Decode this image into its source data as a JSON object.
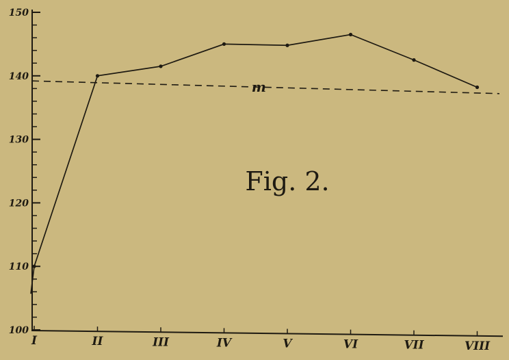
{
  "chart_data": {
    "type": "line",
    "title": "",
    "figure_label": "Fig. 2.",
    "xlabel": "",
    "ylabel": "",
    "x_tick_labels": [
      "I",
      "II",
      "III",
      "IV",
      "V",
      "VI",
      "VII",
      "VIII"
    ],
    "y_tick_labels": [
      "100",
      "110",
      "120",
      "130",
      "140",
      "150"
    ],
    "ylim": [
      100,
      150
    ],
    "series": [
      {
        "values": [
          110,
          140,
          141.5,
          145,
          144.8,
          146.5,
          142.5,
          138.2
        ],
        "style": "solid",
        "markers": true,
        "color": "#1e1a12"
      }
    ],
    "reference_line": {
      "label": "m",
      "style": "dashed",
      "start": 139.2,
      "end": 137.2,
      "color": "#1e1a12"
    },
    "grid": false,
    "legend": "none"
  }
}
